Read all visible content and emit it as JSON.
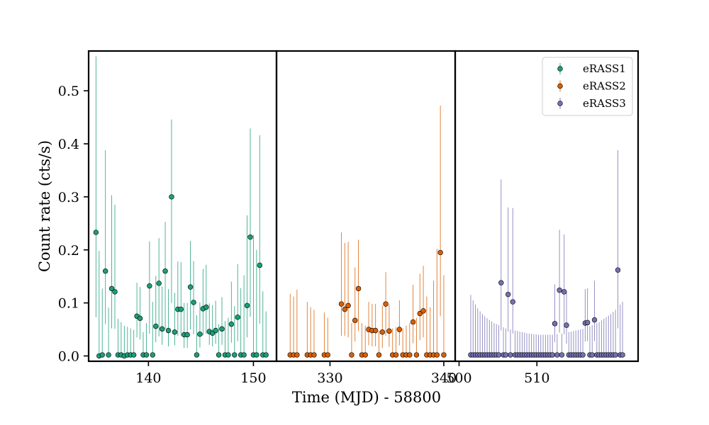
{
  "chart_data": {
    "type": "scatter",
    "subtype": "errorbar-lightcurve",
    "xlabel": "Time (MJD) - 58800",
    "ylabel": "Count rate (cts/s)",
    "ylim": [
      -0.01,
      0.575
    ],
    "yticks": [
      0.0,
      0.1,
      0.2,
      0.3,
      0.4,
      0.5
    ],
    "ytick_labels": [
      "0.0",
      "0.1",
      "0.2",
      "0.3",
      "0.4",
      "0.5"
    ],
    "legend": {
      "location": "top-right",
      "entries": [
        "eRASS1",
        "eRASS2",
        "eRASS3"
      ]
    },
    "panels": [
      {
        "xlim": [
          134.3,
          152.2
        ],
        "xticks": [
          140,
          150
        ],
        "xtick_labels": [
          "140",
          "150"
        ],
        "series": "eRASS1",
        "color": "#1b9e77",
        "x": [
          135.0,
          135.3,
          135.6,
          135.9,
          136.2,
          136.5,
          136.8,
          137.1,
          137.4,
          137.7,
          138.0,
          138.3,
          138.6,
          138.9,
          139.2,
          139.5,
          139.8,
          140.1,
          140.4,
          140.7,
          141.0,
          141.3,
          141.6,
          141.9,
          142.2,
          142.5,
          142.8,
          143.1,
          143.4,
          143.7,
          144.0,
          144.3,
          144.6,
          144.9,
          145.2,
          145.5,
          145.8,
          146.1,
          146.4,
          146.7,
          147.0,
          147.3,
          147.6,
          147.9,
          148.2,
          148.5,
          148.8,
          149.1,
          149.4,
          149.7,
          150.0,
          150.3,
          150.6,
          150.9,
          151.2
        ],
        "y": [
          0.233,
          0.0,
          0.002,
          0.16,
          0.002,
          0.127,
          0.121,
          0.002,
          0.002,
          0.0,
          0.002,
          0.002,
          0.002,
          0.075,
          0.071,
          0.002,
          0.002,
          0.132,
          0.002,
          0.056,
          0.137,
          0.051,
          0.16,
          0.048,
          0.3,
          0.045,
          0.088,
          0.088,
          0.04,
          0.04,
          0.13,
          0.101,
          0.002,
          0.041,
          0.089,
          0.092,
          0.046,
          0.043,
          0.048,
          0.002,
          0.051,
          0.002,
          0.002,
          0.06,
          0.002,
          0.073,
          0.002,
          0.002,
          0.095,
          0.224,
          0.002,
          0.002,
          0.171,
          0.002,
          0.002
        ],
        "err_lo": [
          0.16,
          0.0,
          0.0,
          0.1,
          0.0,
          0.075,
          0.07,
          0.0,
          0.0,
          0.0,
          0.0,
          0.0,
          0.0,
          0.04,
          0.04,
          0.0,
          0.0,
          0.09,
          0.0,
          0.03,
          0.1,
          0.03,
          0.11,
          0.03,
          0.2,
          0.025,
          0.05,
          0.05,
          0.025,
          0.025,
          0.08,
          0.06,
          0.0,
          0.025,
          0.05,
          0.05,
          0.025,
          0.025,
          0.025,
          0.0,
          0.03,
          0.0,
          0.0,
          0.035,
          0.0,
          0.045,
          0.0,
          0.0,
          0.06,
          0.15,
          0.0,
          0.0,
          0.11,
          0.0,
          0.0
        ],
        "err_hi": [
          0.332,
          0.198,
          0.125,
          0.228,
          0.089,
          0.176,
          0.164,
          0.068,
          0.062,
          0.057,
          0.053,
          0.05,
          0.047,
          0.063,
          0.059,
          0.043,
          0.06,
          0.084,
          0.1,
          0.095,
          0.085,
          0.08,
          0.093,
          0.078,
          0.146,
          0.074,
          0.09,
          0.089,
          0.06,
          0.06,
          0.087,
          0.078,
          0.075,
          0.06,
          0.075,
          0.08,
          0.053,
          0.053,
          0.056,
          0.058,
          0.06,
          0.064,
          0.07,
          0.08,
          0.092,
          0.1,
          0.126,
          0.15,
          0.17,
          0.205,
          0.226,
          0.198,
          0.245,
          0.12,
          0.082
        ]
      },
      {
        "xlim": [
          325.3,
          341.0
        ],
        "xticks": [
          330,
          340
        ],
        "xtick_labels": [
          "330",
          "340"
        ],
        "series": "eRASS2",
        "color": "#d95f02",
        "x": [
          326.5,
          326.8,
          327.1,
          328.0,
          328.3,
          328.6,
          329.5,
          329.8,
          331.0,
          331.3,
          331.6,
          331.9,
          332.2,
          332.5,
          332.8,
          333.1,
          333.4,
          333.7,
          334.0,
          334.3,
          334.6,
          334.9,
          335.2,
          335.5,
          335.8,
          336.1,
          336.4,
          336.7,
          337.0,
          337.3,
          337.6,
          337.9,
          338.2,
          338.5,
          338.8,
          339.1,
          339.4,
          339.7,
          340.0
        ],
        "y": [
          0.002,
          0.002,
          0.002,
          0.002,
          0.002,
          0.002,
          0.002,
          0.002,
          0.098,
          0.088,
          0.095,
          0.002,
          0.067,
          0.127,
          0.002,
          0.002,
          0.05,
          0.048,
          0.048,
          0.002,
          0.045,
          0.098,
          0.047,
          0.002,
          0.002,
          0.05,
          0.002,
          0.002,
          0.002,
          0.064,
          0.002,
          0.08,
          0.085,
          0.002,
          0.002,
          0.002,
          0.002,
          0.195,
          0.002
        ],
        "err_lo": [
          0.0,
          0.0,
          0.0,
          0.0,
          0.0,
          0.0,
          0.0,
          0.0,
          0.06,
          0.05,
          0.06,
          0.0,
          0.04,
          0.08,
          0.0,
          0.0,
          0.03,
          0.03,
          0.03,
          0.0,
          0.03,
          0.06,
          0.03,
          0.0,
          0.0,
          0.03,
          0.0,
          0.0,
          0.0,
          0.04,
          0.0,
          0.05,
          0.05,
          0.0,
          0.0,
          0.0,
          0.0,
          0.12,
          0.0
        ],
        "err_hi": [
          0.115,
          0.11,
          0.123,
          0.1,
          0.09,
          0.085,
          0.08,
          0.07,
          0.135,
          0.125,
          0.12,
          0.06,
          0.1,
          0.092,
          0.06,
          0.055,
          0.052,
          0.05,
          0.05,
          0.045,
          0.05,
          0.06,
          0.05,
          0.05,
          0.052,
          0.055,
          0.05,
          0.055,
          0.06,
          0.07,
          0.07,
          0.075,
          0.085,
          0.11,
          0.09,
          0.14,
          0.2,
          0.277,
          0.15
        ]
      },
      {
        "xlim": [
          499.5,
          523.0
        ],
        "xticks": [
          500,
          510
        ],
        "xtick_labels": [
          "500",
          "510"
        ],
        "series": "eRASS3",
        "color": "#7570b3",
        "x": [
          501.5,
          501.8,
          502.1,
          502.4,
          502.7,
          503.0,
          503.3,
          503.6,
          503.9,
          504.2,
          504.5,
          504.8,
          505.1,
          505.4,
          505.7,
          506.0,
          506.3,
          506.6,
          506.9,
          507.2,
          507.5,
          507.8,
          508.1,
          508.4,
          508.7,
          509.0,
          509.3,
          509.6,
          509.9,
          510.2,
          510.5,
          510.8,
          511.1,
          511.4,
          511.7,
          512.0,
          512.3,
          512.6,
          512.9,
          513.2,
          513.5,
          513.8,
          514.1,
          514.4,
          514.7,
          515.0,
          515.3,
          515.6,
          515.9,
          516.2,
          516.5,
          516.8,
          517.1,
          517.4,
          517.7,
          518.0,
          518.3,
          518.6,
          518.9,
          519.2,
          519.5,
          519.8,
          520.1,
          520.4,
          520.7,
          521.0
        ],
        "y": [
          0.002,
          0.002,
          0.002,
          0.002,
          0.002,
          0.002,
          0.002,
          0.002,
          0.002,
          0.002,
          0.002,
          0.002,
          0.002,
          0.138,
          0.002,
          0.002,
          0.116,
          0.002,
          0.102,
          0.002,
          0.002,
          0.002,
          0.002,
          0.002,
          0.002,
          0.002,
          0.002,
          0.002,
          0.002,
          0.002,
          0.002,
          0.002,
          0.002,
          0.002,
          0.002,
          0.002,
          0.061,
          0.002,
          0.124,
          0.002,
          0.121,
          0.058,
          0.002,
          0.002,
          0.002,
          0.002,
          0.002,
          0.002,
          0.002,
          0.062,
          0.063,
          0.002,
          0.002,
          0.068,
          0.002,
          0.002,
          0.002,
          0.002,
          0.002,
          0.002,
          0.002,
          0.002,
          0.002,
          0.162,
          0.002,
          0.002
        ],
        "err_lo": [
          0,
          0,
          0,
          0,
          0,
          0,
          0,
          0,
          0,
          0,
          0,
          0,
          0,
          0.09,
          0,
          0,
          0.07,
          0,
          0.06,
          0,
          0,
          0,
          0,
          0,
          0,
          0,
          0,
          0,
          0,
          0,
          0,
          0,
          0,
          0,
          0,
          0,
          0.035,
          0,
          0.08,
          0,
          0.08,
          0.035,
          0,
          0,
          0,
          0,
          0,
          0,
          0,
          0.035,
          0.035,
          0,
          0,
          0.04,
          0,
          0,
          0,
          0,
          0,
          0,
          0,
          0,
          0,
          0.11,
          0,
          0
        ],
        "err_hi": [
          0.113,
          0.103,
          0.095,
          0.088,
          0.082,
          0.077,
          0.073,
          0.069,
          0.066,
          0.063,
          0.06,
          0.058,
          0.056,
          0.195,
          0.052,
          0.05,
          0.164,
          0.048,
          0.177,
          0.046,
          0.045,
          0.044,
          0.043,
          0.042,
          0.041,
          0.04,
          0.04,
          0.039,
          0.039,
          0.038,
          0.038,
          0.038,
          0.038,
          0.038,
          0.038,
          0.038,
          0.074,
          0.039,
          0.114,
          0.04,
          0.108,
          0.063,
          0.043,
          0.044,
          0.045,
          0.046,
          0.047,
          0.048,
          0.049,
          0.064,
          0.065,
          0.054,
          0.056,
          0.074,
          0.06,
          0.062,
          0.065,
          0.068,
          0.071,
          0.074,
          0.077,
          0.081,
          0.085,
          0.226,
          0.095,
          0.1
        ]
      }
    ]
  }
}
